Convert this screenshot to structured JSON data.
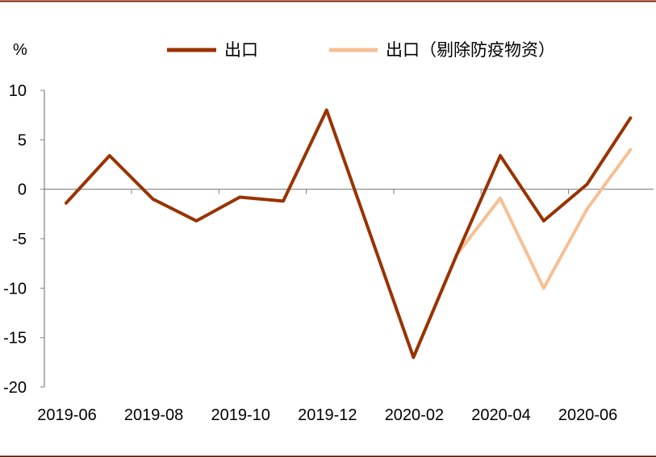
{
  "chart_data": {
    "type": "line",
    "unit_label": "%",
    "x": [
      "2019-06",
      "2019-07",
      "2019-08",
      "2019-09",
      "2019-10",
      "2019-11",
      "2019-12",
      "2020-01",
      "2020-02",
      "2020-03",
      "2020-04",
      "2020-05",
      "2020-06",
      "2020-07"
    ],
    "x_tick_labels": [
      "2019-06",
      "2019-08",
      "2019-10",
      "2019-12",
      "2020-02",
      "2020-04",
      "2020-06"
    ],
    "y_ticks": [
      10,
      5,
      0,
      -5,
      -10,
      -15,
      -20
    ],
    "ylim": [
      -20,
      10
    ],
    "grid": false,
    "legend_position": "top",
    "series": [
      {
        "name": "出口",
        "color": "#993300",
        "values": [
          -1.4,
          3.4,
          -1.0,
          -3.2,
          -0.8,
          -1.2,
          8.0,
          null,
          -17.0,
          -6.6,
          3.4,
          -3.2,
          0.5,
          7.2
        ]
      },
      {
        "name": "出口（剔除防疫物资）",
        "color": "#f7bf93",
        "values": [
          null,
          null,
          null,
          null,
          null,
          null,
          null,
          null,
          -17.0,
          -6.6,
          -0.9,
          -10.0,
          -2.0,
          4.0
        ]
      }
    ]
  },
  "colors": {
    "frame_line": "#7f1f00",
    "axis": "#808080"
  }
}
